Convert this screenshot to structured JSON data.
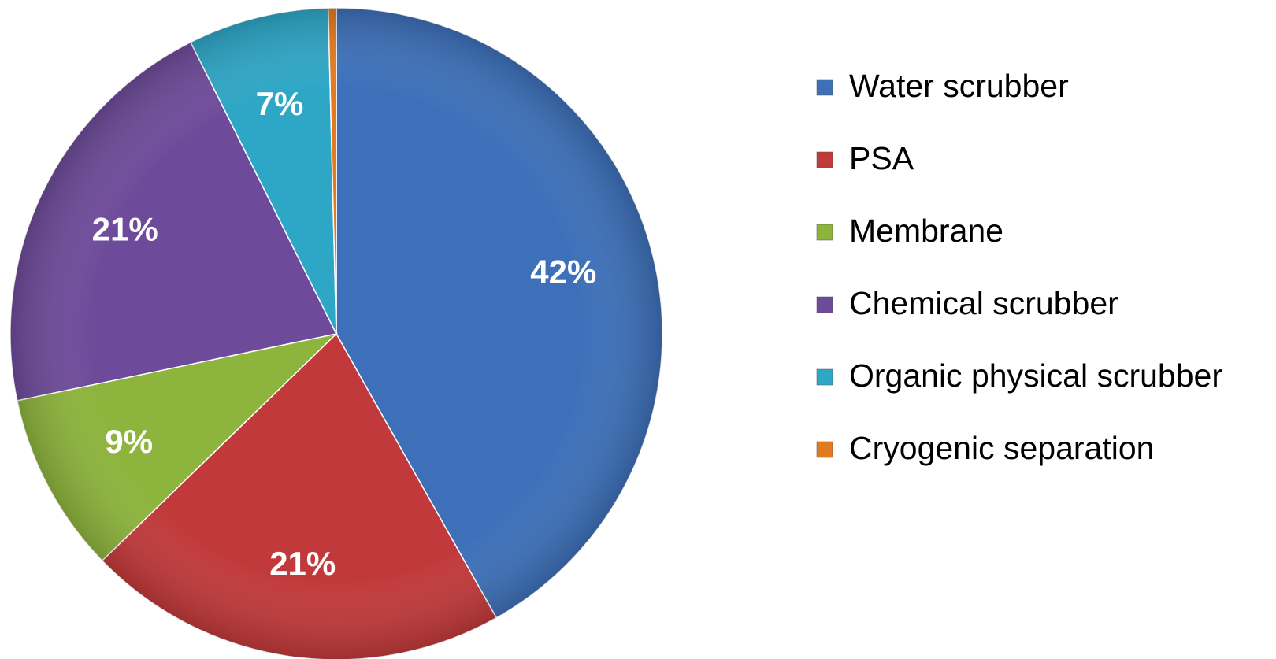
{
  "chart_data": {
    "type": "pie",
    "categories": [
      "Water scrubber",
      "PSA",
      "Membrane",
      "Chemical scrubber",
      "Organic physical scrubber",
      "Cryogenic separation"
    ],
    "values": [
      42,
      21,
      9,
      21,
      7,
      0.4
    ],
    "value_labels": [
      "42%",
      "21%",
      "9%",
      "21%",
      "7%",
      null
    ],
    "colors": [
      "#3d70b9",
      "#c1393a",
      "#8db43c",
      "#6e4b9a",
      "#2ea6c6",
      "#e07b22"
    ],
    "legend": "right"
  }
}
